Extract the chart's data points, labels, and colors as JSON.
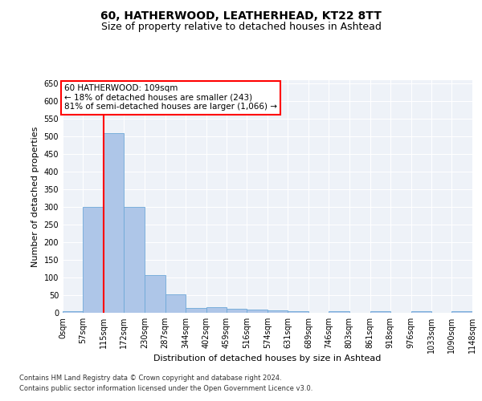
{
  "title": "60, HATHERWOOD, LEATHERHEAD, KT22 8TT",
  "subtitle": "Size of property relative to detached houses in Ashtead",
  "xlabel": "Distribution of detached houses by size in Ashtead",
  "ylabel": "Number of detached properties",
  "footer_line1": "Contains HM Land Registry data © Crown copyright and database right 2024.",
  "footer_line2": "Contains public sector information licensed under the Open Government Licence v3.0.",
  "annotation_line1": "60 HATHERWOOD: 109sqm",
  "annotation_line2": "← 18% of detached houses are smaller (243)",
  "annotation_line3": "81% of semi-detached houses are larger (1,066) →",
  "bar_edges": [
    0,
    57,
    115,
    172,
    230,
    287,
    344,
    402,
    459,
    516,
    574,
    631,
    689,
    746,
    803,
    861,
    918,
    976,
    1033,
    1090,
    1148
  ],
  "bar_values": [
    5,
    300,
    510,
    300,
    107,
    53,
    14,
    15,
    12,
    9,
    6,
    5,
    0,
    5,
    0,
    5,
    0,
    5,
    0,
    5
  ],
  "bar_color": "#aec6e8",
  "bar_edgecolor": "#6ea8d8",
  "red_line_x": 115,
  "tick_labels": [
    "0sqm",
    "57sqm",
    "115sqm",
    "172sqm",
    "230sqm",
    "287sqm",
    "344sqm",
    "402sqm",
    "459sqm",
    "516sqm",
    "574sqm",
    "631sqm",
    "689sqm",
    "746sqm",
    "803sqm",
    "861sqm",
    "918sqm",
    "976sqm",
    "1033sqm",
    "1090sqm",
    "1148sqm"
  ],
  "yticks": [
    0,
    50,
    100,
    150,
    200,
    250,
    300,
    350,
    400,
    450,
    500,
    550,
    600,
    650
  ],
  "ylim": [
    0,
    660
  ],
  "bg_color": "#eef2f8",
  "grid_color": "#ffffff",
  "title_fontsize": 10,
  "subtitle_fontsize": 9,
  "ylabel_fontsize": 8,
  "xlabel_fontsize": 8,
  "tick_fontsize": 7,
  "ytick_fontsize": 7,
  "footer_fontsize": 6,
  "annotation_fontsize": 7.5
}
